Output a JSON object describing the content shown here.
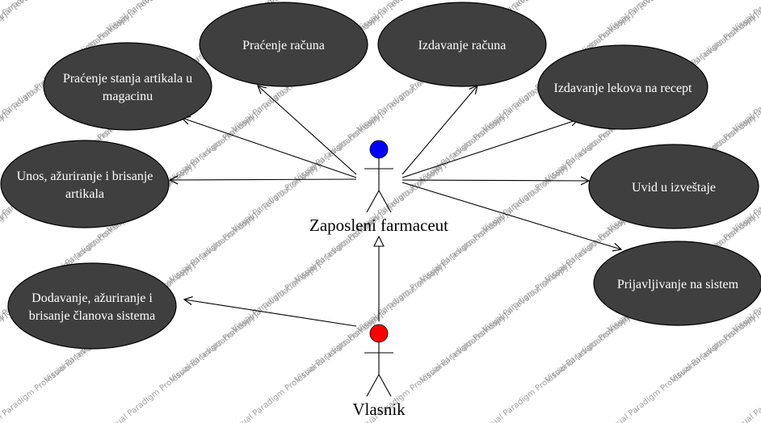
{
  "diagram": {
    "actors": [
      {
        "id": "farmaceut",
        "name": "Zaposleni farmaceut",
        "head_color": "#0000ff"
      },
      {
        "id": "vlasnik",
        "name": "Vlasnik",
        "head_color": "#ff0000"
      }
    ],
    "use_cases": [
      {
        "id": "pracenje-racuna",
        "lines": [
          "Praćenje računa"
        ]
      },
      {
        "id": "izdavanje-racuna",
        "lines": [
          "Izdavanje računa"
        ]
      },
      {
        "id": "pracenje-stanja",
        "lines": [
          "Praćenje stanja artikala u",
          "magacinu"
        ]
      },
      {
        "id": "izdavanje-lekova",
        "lines": [
          "Izdavanje lekova na recept"
        ]
      },
      {
        "id": "unos-artikala",
        "lines": [
          "Unos, ažuriranje i brisanje",
          "artikala"
        ]
      },
      {
        "id": "uvid-izvestaje",
        "lines": [
          "Uvid u izveštaje"
        ]
      },
      {
        "id": "prijavljivanje",
        "lines": [
          "Prijavljivanje na sistem"
        ]
      },
      {
        "id": "dodavanje-clanova",
        "lines": [
          "Dodavanje, ažuriranje i",
          "brisanje članova sistema"
        ]
      }
    ],
    "associations": [
      {
        "from": "farmaceut",
        "to": "pracenje-racuna"
      },
      {
        "from": "farmaceut",
        "to": "izdavanje-racuna"
      },
      {
        "from": "farmaceut",
        "to": "pracenje-stanja"
      },
      {
        "from": "farmaceut",
        "to": "izdavanje-lekova"
      },
      {
        "from": "farmaceut",
        "to": "unos-artikala"
      },
      {
        "from": "farmaceut",
        "to": "uvid-izvestaje"
      },
      {
        "from": "farmaceut",
        "to": "prijavljivanje"
      },
      {
        "from": "vlasnik",
        "to": "dodavanje-clanova"
      }
    ],
    "generalizations": [
      {
        "child": "vlasnik",
        "parent": "farmaceut"
      }
    ],
    "ellipse_color": "#3f3f3f",
    "watermark": "Visual Paradigm Professional [evaluation copy]"
  }
}
